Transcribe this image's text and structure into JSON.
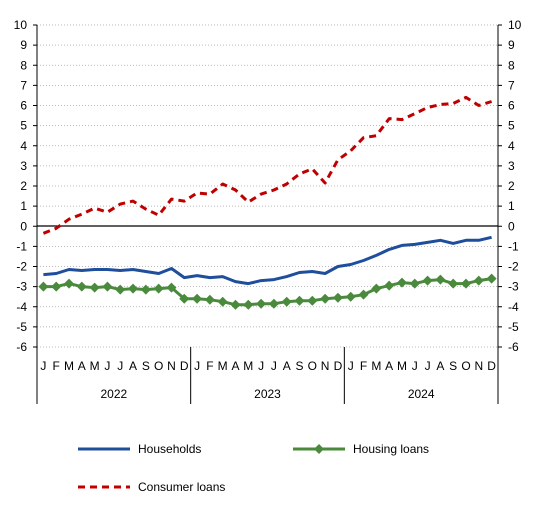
{
  "chart_data": {
    "type": "line",
    "x": [
      "J",
      "F",
      "M",
      "A",
      "M",
      "J",
      "J",
      "A",
      "S",
      "O",
      "N",
      "D",
      "J",
      "F",
      "M",
      "A",
      "M",
      "J",
      "J",
      "A",
      "S",
      "O",
      "N",
      "D",
      "J",
      "F",
      "M",
      "A",
      "M",
      "J",
      "J",
      "A",
      "S",
      "O",
      "N",
      "D"
    ],
    "years": [
      "2022",
      "2023",
      "2024"
    ],
    "ylim": [
      -6,
      10
    ],
    "yticks": [
      "-6",
      "-5",
      "-4",
      "-3",
      "-2",
      "-1",
      "0",
      "1",
      "2",
      "3",
      "4",
      "5",
      "6",
      "7",
      "8",
      "9",
      "10"
    ],
    "grid": true,
    "legend_position": "bottom",
    "series": [
      {
        "name": "Households",
        "color": "#1f4e9c",
        "style": "solid",
        "values": [
          -2.4,
          -2.35,
          -2.15,
          -2.2,
          -2.15,
          -2.15,
          -2.2,
          -2.15,
          -2.25,
          -2.35,
          -2.1,
          -2.55,
          -2.45,
          -2.55,
          -2.5,
          -2.75,
          -2.85,
          -2.7,
          -2.65,
          -2.5,
          -2.3,
          -2.25,
          -2.35,
          -2.0,
          -1.9,
          -1.7,
          -1.45,
          -1.15,
          -0.95,
          -0.9,
          -0.8,
          -0.7,
          -0.85,
          -0.7,
          -0.7,
          -0.55
        ]
      },
      {
        "name": "Housing loans",
        "color": "#4a8a3c",
        "style": "solid-diamond",
        "values": [
          -3.0,
          -3.0,
          -2.85,
          -3.0,
          -3.05,
          -3.0,
          -3.15,
          -3.1,
          -3.15,
          -3.1,
          -3.05,
          -3.6,
          -3.6,
          -3.65,
          -3.75,
          -3.9,
          -3.9,
          -3.85,
          -3.85,
          -3.75,
          -3.7,
          -3.7,
          -3.6,
          -3.55,
          -3.5,
          -3.4,
          -3.1,
          -2.95,
          -2.8,
          -2.85,
          -2.7,
          -2.65,
          -2.85,
          -2.85,
          -2.7,
          -2.6
        ]
      },
      {
        "name": "Consumer loans",
        "color": "#c00000",
        "style": "dashed",
        "values": [
          -0.35,
          -0.1,
          0.35,
          0.6,
          0.9,
          0.7,
          1.1,
          1.25,
          0.85,
          0.55,
          1.35,
          1.25,
          1.65,
          1.6,
          2.1,
          1.8,
          1.2,
          1.6,
          1.8,
          2.1,
          2.6,
          2.85,
          2.15,
          3.3,
          3.75,
          4.4,
          4.5,
          5.35,
          5.3,
          5.6,
          5.9,
          6.05,
          6.1,
          6.4,
          6.0,
          6.2
        ]
      }
    ]
  }
}
